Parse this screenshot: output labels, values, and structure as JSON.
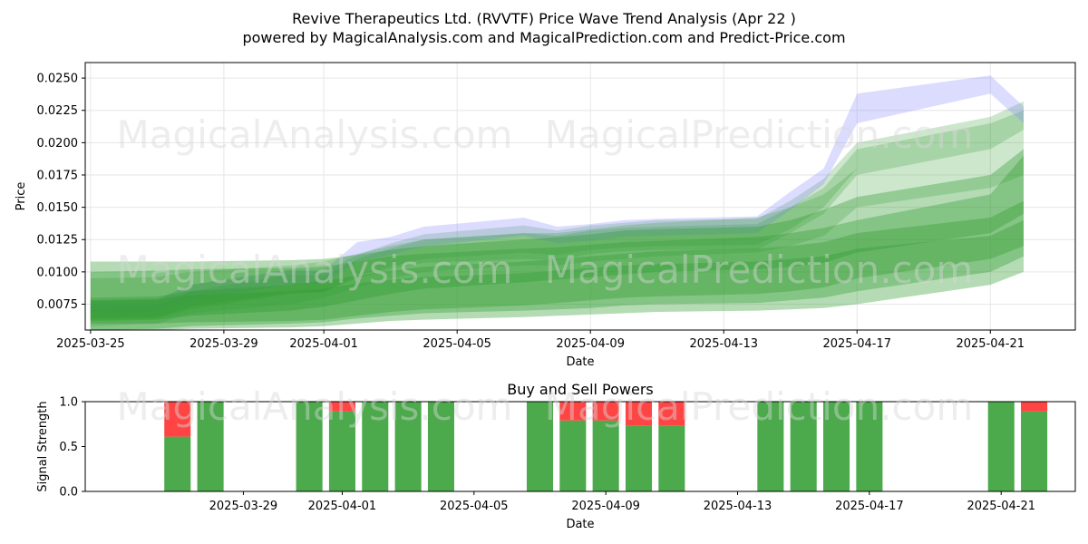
{
  "header": {
    "title": "Revive Therapeutics Ltd. (RVVTF) Price Wave Trend Analysis (Apr 22 )",
    "subtitle": "powered by MagicalAnalysis.com and MagicalPrediction.com and Predict-Price.com"
  },
  "watermarks": [
    "MagicalAnalysis.com",
    "MagicalPrediction.com"
  ],
  "colors": {
    "band_green": "#2e9a2e",
    "band_blue": "#8080ff",
    "buy": "#4caa4c",
    "sell": "#ff4444"
  },
  "chart_data": [
    {
      "type": "area",
      "title": "",
      "xlabel": "Date",
      "ylabel": "Price",
      "x_ticks": [
        "2025-03-25",
        "2025-03-29",
        "2025-04-01",
        "2025-04-05",
        "2025-04-09",
        "2025-04-13",
        "2025-04-17",
        "2025-04-21"
      ],
      "y_ticks": [
        "0.0075",
        "0.0100",
        "0.0125",
        "0.0150",
        "0.0175",
        "0.0200",
        "0.0225",
        "0.0250"
      ],
      "xlim": [
        "2025-03-25",
        "2025-04-23"
      ],
      "ylim": [
        0.0055,
        0.0262
      ],
      "grid": true,
      "dates": [
        "2025-03-25",
        "2025-03-27",
        "2025-03-28",
        "2025-03-31",
        "2025-04-01",
        "2025-04-02",
        "2025-04-03",
        "2025-04-04",
        "2025-04-07",
        "2025-04-08",
        "2025-04-09",
        "2025-04-10",
        "2025-04-11",
        "2025-04-14",
        "2025-04-15",
        "2025-04-16",
        "2025-04-17",
        "2025-04-21",
        "2025-04-22"
      ],
      "series": [
        {
          "color": "green",
          "lower": [
            0.0063,
            0.0064,
            0.0071,
            0.0083,
            0.0085,
            0.0095,
            0.0102,
            0.0107,
            0.011,
            0.0109,
            0.0114,
            0.0116,
            0.0117,
            0.0117,
            0.013,
            0.0145,
            0.0175,
            0.0195,
            0.021
          ],
          "upper": [
            0.0073,
            0.0074,
            0.0085,
            0.0098,
            0.0097,
            0.011,
            0.0118,
            0.0125,
            0.013,
            0.0128,
            0.0132,
            0.0134,
            0.0135,
            0.0137,
            0.015,
            0.0165,
            0.0195,
            0.0215,
            0.0225
          ]
        },
        {
          "color": "green",
          "lower": [
            0.0064,
            0.0065,
            0.0073,
            0.0084,
            0.0084,
            0.0097,
            0.0104,
            0.011,
            0.0115,
            0.0113,
            0.0117,
            0.0119,
            0.012,
            0.0121,
            0.0133,
            0.015,
            0.018,
            0.02,
            0.0215
          ],
          "upper": [
            0.0077,
            0.0078,
            0.009,
            0.0101,
            0.01,
            0.0113,
            0.0122,
            0.0129,
            0.0136,
            0.0132,
            0.0136,
            0.0138,
            0.014,
            0.0141,
            0.0155,
            0.0172,
            0.02,
            0.022,
            0.0232
          ]
        },
        {
          "color": "blue",
          "lower": [
            0.0068,
            0.0069,
            0.0078,
            0.009,
            0.0091,
            0.0108,
            0.0113,
            0.012,
            0.0128,
            0.0122,
            0.0124,
            0.0127,
            0.0128,
            0.013,
            0.0148,
            0.0168,
            0.0215,
            0.0238,
            0.0215
          ],
          "upper": [
            0.0078,
            0.0079,
            0.009,
            0.0102,
            0.0101,
            0.0123,
            0.0127,
            0.0135,
            0.0142,
            0.0135,
            0.0137,
            0.014,
            0.0141,
            0.0143,
            0.0162,
            0.018,
            0.0238,
            0.0252,
            0.0228
          ]
        },
        {
          "color": "green",
          "lower": [
            0.0058,
            0.006,
            0.0068,
            0.0075,
            0.008,
            0.0088,
            0.0095,
            0.01,
            0.0105,
            0.0105,
            0.0108,
            0.011,
            0.0112,
            0.0115,
            0.012,
            0.0128,
            0.015,
            0.0165,
            0.0175
          ],
          "upper": [
            0.0095,
            0.0096,
            0.01,
            0.0105,
            0.0108,
            0.0114,
            0.012,
            0.0125,
            0.013,
            0.013,
            0.0133,
            0.0136,
            0.0138,
            0.0142,
            0.015,
            0.016,
            0.018,
            0.02,
            0.0215
          ]
        },
        {
          "color": "green",
          "lower": [
            0.0055,
            0.0056,
            0.0058,
            0.006,
            0.0061,
            0.0064,
            0.0066,
            0.0068,
            0.007,
            0.0071,
            0.0072,
            0.0074,
            0.0075,
            0.0076,
            0.0078,
            0.008,
            0.0085,
            0.01,
            0.0112
          ],
          "upper": [
            0.01,
            0.0101,
            0.0102,
            0.0103,
            0.0104,
            0.0108,
            0.0112,
            0.0114,
            0.0118,
            0.0119,
            0.0121,
            0.0123,
            0.0124,
            0.0127,
            0.013,
            0.0134,
            0.014,
            0.016,
            0.019
          ]
        },
        {
          "color": "green",
          "lower": [
            0.0054,
            0.0055,
            0.0056,
            0.0057,
            0.0058,
            0.006,
            0.0062,
            0.0063,
            0.0065,
            0.0066,
            0.0067,
            0.0068,
            0.0069,
            0.007,
            0.0071,
            0.0072,
            0.0075,
            0.009,
            0.01
          ],
          "upper": [
            0.0108,
            0.0108,
            0.0108,
            0.0109,
            0.011,
            0.0113,
            0.0117,
            0.012,
            0.0125,
            0.0127,
            0.0129,
            0.0132,
            0.0133,
            0.0135,
            0.014,
            0.0148,
            0.0158,
            0.0175,
            0.0195
          ]
        },
        {
          "color": "green",
          "lower": [
            0.006,
            0.006,
            0.0061,
            0.0062,
            0.0063,
            0.0066,
            0.0069,
            0.0071,
            0.0074,
            0.0076,
            0.0078,
            0.008,
            0.0081,
            0.0083,
            0.0085,
            0.0088,
            0.0095,
            0.011,
            0.012
          ],
          "upper": [
            0.0078,
            0.0079,
            0.0082,
            0.0085,
            0.0087,
            0.0091,
            0.0094,
            0.0096,
            0.0099,
            0.0101,
            0.0103,
            0.0105,
            0.0106,
            0.0108,
            0.011,
            0.0112,
            0.0118,
            0.0128,
            0.014
          ]
        },
        {
          "color": "green",
          "lower": [
            0.0062,
            0.0063,
            0.0066,
            0.007,
            0.0073,
            0.0078,
            0.0083,
            0.0087,
            0.0092,
            0.0094,
            0.0096,
            0.0098,
            0.01,
            0.0102,
            0.0104,
            0.0107,
            0.0115,
            0.013,
            0.0145
          ],
          "upper": [
            0.008,
            0.0081,
            0.0085,
            0.009,
            0.0093,
            0.0097,
            0.0101,
            0.0104,
            0.0108,
            0.011,
            0.0112,
            0.0114,
            0.0116,
            0.0118,
            0.012,
            0.0123,
            0.013,
            0.0142,
            0.0155
          ]
        }
      ]
    },
    {
      "type": "bar",
      "title": "Buy and Sell Powers",
      "xlabel": "Date",
      "ylabel": "Signal Strength",
      "x_ticks": [
        "2025-03-29",
        "2025-04-01",
        "2025-04-05",
        "2025-04-09",
        "2025-04-13",
        "2025-04-17",
        "2025-04-21"
      ],
      "y_ticks": [
        "0.0",
        "0.5",
        "1.0"
      ],
      "xlim": [
        "2025-03-25",
        "2025-04-23"
      ],
      "ylim": [
        0,
        1
      ],
      "categories": [
        "2025-03-27",
        "2025-03-28",
        "2025-03-31",
        "2025-04-01",
        "2025-04-02",
        "2025-04-03",
        "2025-04-04",
        "2025-04-07",
        "2025-04-08",
        "2025-04-09",
        "2025-04-10",
        "2025-04-11",
        "2025-04-14",
        "2025-04-15",
        "2025-04-16",
        "2025-04-17",
        "2025-04-21",
        "2025-04-22"
      ],
      "series": [
        {
          "name": "buy",
          "values": [
            0.61,
            1.0,
            1.0,
            0.89,
            1.0,
            1.0,
            1.0,
            1.0,
            0.79,
            0.79,
            0.73,
            0.73,
            1.0,
            1.0,
            1.0,
            1.0,
            1.0,
            0.89
          ]
        },
        {
          "name": "sell",
          "values": [
            0.39,
            0.0,
            0.0,
            0.11,
            0.0,
            0.0,
            0.0,
            0.0,
            0.21,
            0.21,
            0.27,
            0.27,
            0.0,
            0.0,
            0.0,
            0.0,
            0.0,
            0.11
          ]
        }
      ]
    }
  ]
}
